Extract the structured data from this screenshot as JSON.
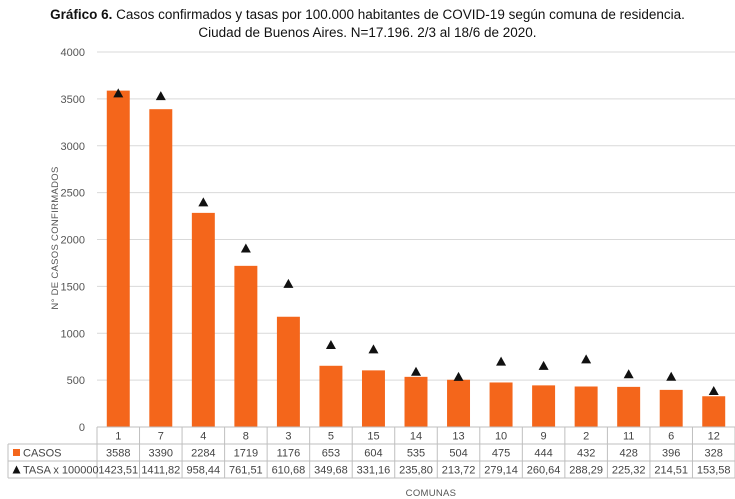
{
  "title": {
    "prefix": "Gráfico 6.",
    "line1": "Casos confirmados y tasas por 100.000 habitantes de COVID-19 según comuna de residencia.",
    "line2": "Ciudad de Buenos Aires. N=17.196. 2/3 al 18/6 de 2020."
  },
  "colors": {
    "bars": "#f4661b",
    "markers": "#111111",
    "grid": "#d9d9d9",
    "table_border": "#bfbfbf"
  },
  "chart_data": {
    "type": "bar",
    "title": "Casos confirmados y tasas por 100.000 habitantes de COVID-19 según comuna de residencia. Ciudad de Buenos Aires. N=17.196. 2/3 al 18/6 de 2020.",
    "xlabel": "COMUNAS",
    "ylabel": "N° DE CASOS CONFIRMADOS",
    "ylim": [
      0,
      4000
    ],
    "yticks": [
      "0",
      "500",
      "1000",
      "1500",
      "2000",
      "2500",
      "3000",
      "3500",
      "4000"
    ],
    "grid": true,
    "legend": "data-table",
    "categories": [
      "1",
      "7",
      "4",
      "8",
      "3",
      "5",
      "15",
      "14",
      "13",
      "10",
      "9",
      "2",
      "11",
      "6",
      "12"
    ],
    "series": [
      {
        "name": "CASOS",
        "type": "bar",
        "values": [
          3588,
          3390,
          2284,
          1719,
          1176,
          653,
          604,
          535,
          504,
          475,
          444,
          432,
          428,
          396,
          328
        ],
        "labels": [
          "3588",
          "3390",
          "2284",
          "1719",
          "1176",
          "653",
          "604",
          "535",
          "504",
          "475",
          "444",
          "432",
          "428",
          "396",
          "328"
        ]
      },
      {
        "name": "TASA x 100000",
        "type": "scatter",
        "values": [
          1423.51,
          1411.82,
          958.44,
          761.51,
          610.68,
          349.68,
          331.16,
          235.8,
          213.72,
          279.14,
          260.64,
          288.29,
          225.32,
          214.51,
          153.58
        ],
        "labels": [
          "1423,51",
          "1411,82",
          "958,44",
          "761,51",
          "610,68",
          "349,68",
          "331,16",
          "235,80",
          "213,72",
          "279,14",
          "260,64",
          "288,29",
          "225,32",
          "214,51",
          "153,58"
        ]
      }
    ]
  }
}
